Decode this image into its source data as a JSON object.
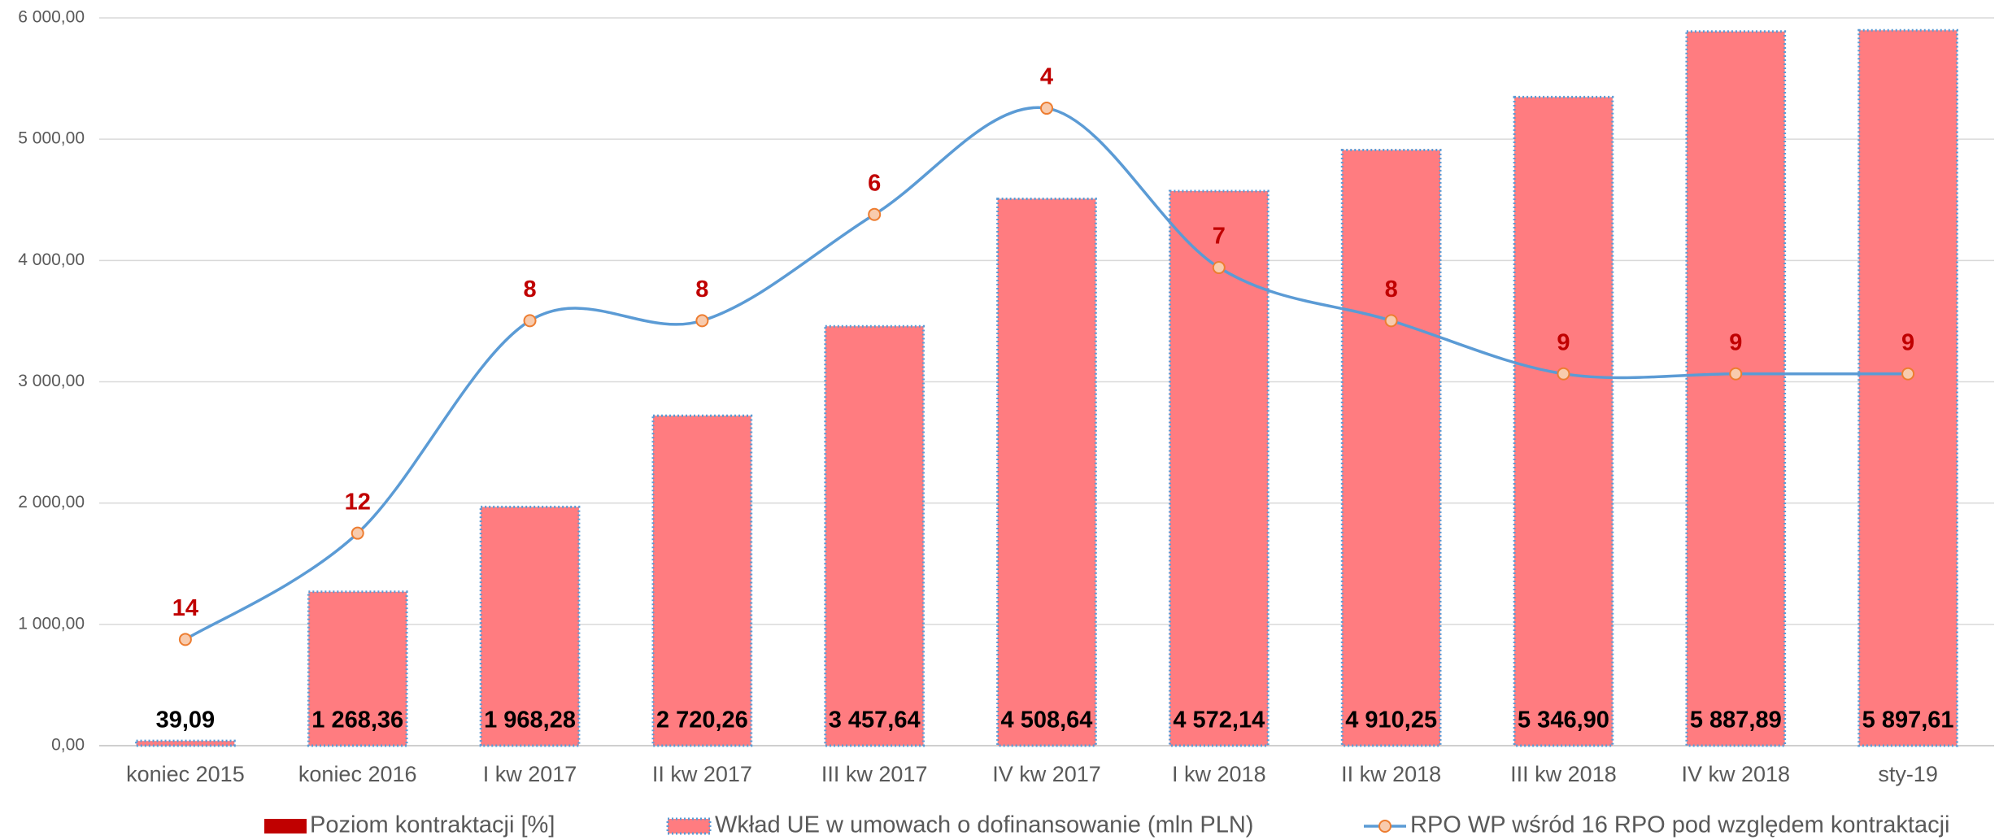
{
  "chart_data": {
    "type": "bar",
    "categories": [
      "koniec 2015",
      "koniec 2016",
      "I kw 2017",
      "II kw 2017",
      "III kw 2017",
      "IV kw 2017",
      "I kw 2018",
      "II kw 2018",
      "III kw 2018",
      "IV kw 2018",
      "sty-19"
    ],
    "series": [
      {
        "name": "Poziom kontraktacji [%]",
        "color": "#c00000",
        "type": "bar",
        "values": [
          null,
          null,
          null,
          null,
          null,
          null,
          null,
          null,
          null,
          null,
          null
        ]
      },
      {
        "name": "Wkład UE w umowach o dofinansowanie (mln PLN)",
        "color": "#ff7c80",
        "type": "bar",
        "values": [
          39.09,
          1268.36,
          1968.28,
          2720.26,
          3457.64,
          4508.64,
          4572.14,
          4910.25,
          5346.9,
          5887.89,
          5897.61
        ],
        "value_labels": [
          "39,09",
          "1 268,36",
          "1 968,28",
          "2 720,26",
          "3 457,64",
          "4 508,64",
          "4 572,14",
          "4 910,25",
          "5 346,90",
          "5 887,89",
          "5 897,61"
        ]
      },
      {
        "name": "RPO WP wśród 16 RPO pod względem kontraktacji",
        "color": "#5b9bd5",
        "type": "line",
        "axis": "y2",
        "values": [
          14,
          12,
          8,
          8,
          6,
          4,
          7,
          8,
          9,
          9,
          9
        ]
      }
    ],
    "ylim": [
      0,
      6000
    ],
    "yticks": [
      {
        "value": 0,
        "label": "0,00"
      },
      {
        "value": 1000,
        "label": "1 000,00"
      },
      {
        "value": 2000,
        "label": "2 000,00"
      },
      {
        "value": 3000,
        "label": "3 000,00"
      },
      {
        "value": 4000,
        "label": "4 000,00"
      },
      {
        "value": 5000,
        "label": "5 000,00"
      },
      {
        "value": 6000,
        "label": "6 000,00"
      }
    ],
    "y2lim": [
      16,
      2.3
    ],
    "grid": true,
    "legend": "bottom"
  }
}
